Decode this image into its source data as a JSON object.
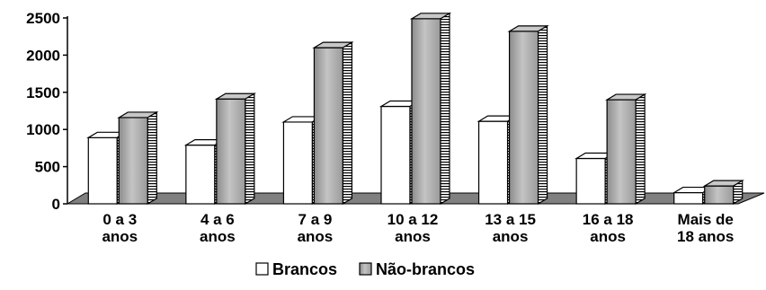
{
  "chart_data": {
    "type": "bar",
    "style": "3d-clustered-column",
    "title": "",
    "xlabel": "",
    "ylabel": "",
    "ylim": [
      0,
      2500
    ],
    "yticks": [
      0,
      500,
      1000,
      1500,
      2000,
      2500
    ],
    "grid": false,
    "legend_position": "bottom",
    "categories": [
      [
        "0 a 3",
        "anos"
      ],
      [
        "4 a 6",
        "anos"
      ],
      [
        "7 a 9",
        "anos"
      ],
      [
        "10 a 12",
        "anos"
      ],
      [
        "13 a 15",
        "anos"
      ],
      [
        "16 a 18",
        "anos"
      ],
      [
        "Mais de",
        "18 anos"
      ]
    ],
    "series": [
      {
        "name": "Brancos",
        "values": [
          890,
          790,
          1100,
          1310,
          1110,
          610,
          150
        ],
        "color": "#ffffff"
      },
      {
        "name": "Não-brancos",
        "values": [
          1160,
          1410,
          2100,
          2490,
          2320,
          1400,
          240
        ],
        "color": "#a8a8a8"
      }
    ],
    "floor_color": "#808080"
  }
}
